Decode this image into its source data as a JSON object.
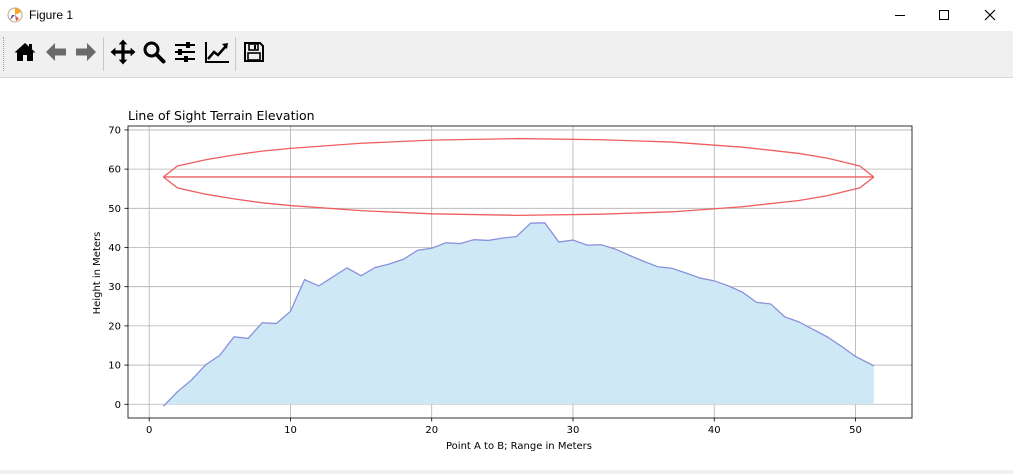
{
  "window": {
    "title": "Figure 1",
    "icon": "matplotlib-figure-icon",
    "controls": [
      "minimize-icon",
      "maximize-icon",
      "close-icon"
    ]
  },
  "toolbar": {
    "buttons": [
      "home-icon",
      "back-arrow-icon",
      "forward-arrow-icon",
      "pan-move-icon",
      "zoom-magnifier-icon",
      "configure-subplots-icon",
      "edit-axis-icon",
      "save-floppy-icon"
    ]
  },
  "chart_data": {
    "type": "area",
    "title": "Line of Sight Terrain Elevation",
    "xlabel": "Point A to B; Range in Meters",
    "ylabel": "Height in Meters",
    "xlim": [
      -1.5,
      54
    ],
    "ylim": [
      -3.5,
      71
    ],
    "xticks": [
      0,
      10,
      20,
      30,
      40,
      50
    ],
    "yticks": [
      0,
      10,
      20,
      30,
      40,
      50,
      60,
      70
    ],
    "grid": true,
    "fill_color": "#cfe8f5",
    "line_color": "#8a92dc",
    "ellipse_color": "#ef5e5e",
    "terrain": {
      "x": [
        1,
        2,
        3,
        4,
        5,
        6,
        7,
        8,
        9,
        10,
        11,
        12,
        13,
        14,
        15,
        16,
        17,
        18,
        19,
        20,
        21,
        22,
        23,
        24,
        25,
        26,
        27,
        28,
        29,
        30,
        31,
        32,
        33,
        34,
        35,
        36,
        37,
        38,
        39,
        40,
        41,
        42,
        43,
        44,
        45,
        46,
        47,
        48,
        49,
        50,
        51.3
      ],
      "y": [
        -0.5,
        3.2,
        6.2,
        10.1,
        12.5,
        17.2,
        16.8,
        20.8,
        20.6,
        23.7,
        31.8,
        30.2,
        32.5,
        34.8,
        32.8,
        34.9,
        35.8,
        37,
        39.3,
        39.8,
        41.2,
        41,
        42,
        41.8,
        42.4,
        42.8,
        46.2,
        46.3,
        41.4,
        41.9,
        40.6,
        40.7,
        39.6,
        38,
        36.5,
        35.1,
        34.7,
        33.5,
        32.2,
        31.5,
        30.2,
        28.6,
        26,
        25.6,
        22.3,
        21,
        19.1,
        17.2,
        14.8,
        12.2,
        9.8
      ]
    },
    "line_of_sight": {
      "x": [
        1,
        51.3
      ],
      "y": [
        58,
        58
      ]
    },
    "fresnel_zone": {
      "upper": {
        "x": [
          1,
          2,
          4,
          6,
          8,
          10,
          15,
          20,
          26.15,
          32,
          37,
          42,
          46,
          48,
          50.3,
          51.3
        ],
        "y": [
          58,
          60.8,
          62.4,
          63.6,
          64.6,
          65.3,
          66.6,
          67.4,
          67.8,
          67.5,
          66.9,
          65.6,
          64,
          62.8,
          60.8,
          58
        ]
      },
      "lower": {
        "x": [
          1,
          2,
          4,
          6,
          8,
          10,
          15,
          20,
          26.15,
          32,
          37,
          42,
          46,
          48,
          50.3,
          51.3
        ],
        "y": [
          58,
          55.2,
          53.6,
          52.4,
          51.4,
          50.7,
          49.4,
          48.6,
          48.2,
          48.5,
          49.1,
          50.4,
          52,
          53.2,
          55.2,
          58
        ]
      }
    }
  }
}
